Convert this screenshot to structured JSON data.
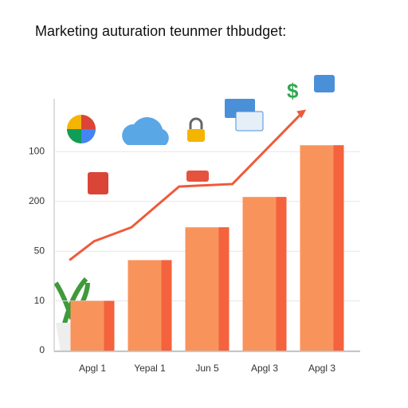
{
  "chart_data": {
    "type": "bar",
    "title": "Marketing auturation teunmer thbudget:",
    "categories": [
      "Apgl 1",
      "Yepal 1",
      "Jun 5",
      "Apgl 3",
      "Apgl 3"
    ],
    "values": [
      1.0,
      1.82,
      2.48,
      3.09,
      4.13
    ],
    "color": "#f8935c",
    "edge_color": "#f4623e",
    "line": {
      "color": "#ef5a3a",
      "x": [
        -0.4,
        0.03,
        0.68,
        1.51,
        2.44,
        3.67
      ],
      "values": [
        1.82,
        2.2,
        2.48,
        3.3,
        3.35,
        4.8
      ]
    },
    "ylim": [
      0,
      5
    ],
    "yticks": [
      {
        "value": 0,
        "label": "0"
      },
      {
        "value": 1,
        "label": "10"
      },
      {
        "value": 2,
        "label": "50"
      },
      {
        "value": 3,
        "label": "200"
      },
      {
        "value": 4,
        "label": "100"
      }
    ],
    "grid": true
  }
}
